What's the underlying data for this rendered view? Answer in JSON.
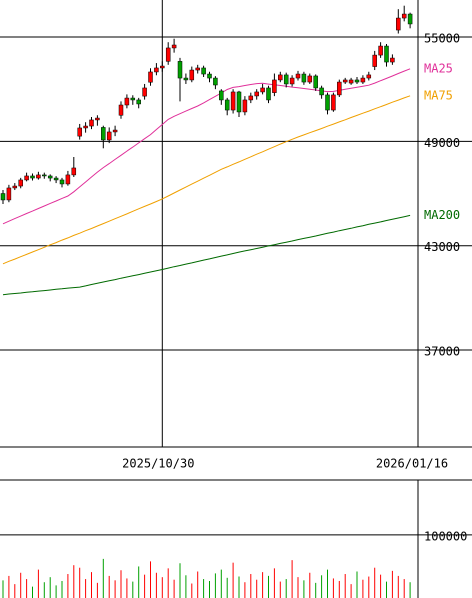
{
  "chart_data": {
    "type": "candlestick",
    "categories": [
      null,
      null,
      null,
      null,
      null,
      null,
      null,
      null,
      null,
      null,
      null,
      null,
      null,
      null,
      null,
      null,
      null,
      null,
      null,
      null,
      null,
      null,
      null,
      null,
      null,
      null,
      null,
      "2025/10/30",
      null,
      null,
      null,
      null,
      null,
      null,
      null,
      null,
      null,
      null,
      null,
      null,
      null,
      null,
      null,
      null,
      null,
      null,
      null,
      null,
      null,
      null,
      null,
      null,
      null,
      null,
      null,
      null,
      null,
      null,
      null,
      null,
      null,
      null,
      null,
      null,
      null,
      null,
      null,
      null,
      null,
      "2026/01/16"
    ],
    "open": [
      46000,
      45630,
      46320,
      46430,
      46780,
      47010,
      46890,
      47070,
      47010,
      46890,
      46780,
      46550,
      47070,
      49300,
      49770,
      49880,
      50230,
      49800,
      49080,
      49540,
      50500,
      51090,
      51490,
      51380,
      51600,
      52400,
      52990,
      53220,
      53600,
      54370,
      53600,
      52640,
      52530,
      53100,
      53220,
      52870,
      52640,
      51900,
      51380,
      50800,
      51840,
      50690,
      51380,
      51610,
      51840,
      52070,
      51800,
      52530,
      52820,
      52300,
      52640,
      52870,
      52410,
      52760,
      52070,
      51670,
      50800,
      51670,
      52410,
      52350,
      52530,
      52410,
      52640,
      53300,
      53960,
      54480,
      53560,
      55400,
      56090,
      56320
    ],
    "high": [
      46200,
      46500,
      46600,
      46900,
      47200,
      47150,
      47250,
      47200,
      47100,
      47000,
      46900,
      47300,
      48100,
      50000,
      50100,
      50400,
      50500,
      49900,
      49800,
      49900,
      51300,
      51700,
      51650,
      51500,
      52300,
      53200,
      53500,
      53600,
      54700,
      54900,
      53800,
      52900,
      53300,
      53400,
      53350,
      53000,
      52750,
      52000,
      51500,
      52000,
      51900,
      51600,
      51800,
      52000,
      52300,
      52200,
      52900,
      53000,
      52950,
      52800,
      53050,
      53000,
      52900,
      52850,
      52200,
      51800,
      51800,
      52550,
      52650,
      52650,
      52700,
      52800,
      53000,
      54200,
      54700,
      54600,
      54000,
      56600,
      56800,
      56400
    ],
    "low": [
      45400,
      45500,
      46200,
      46300,
      46700,
      46750,
      46800,
      46850,
      46700,
      46600,
      46350,
      46450,
      46950,
      49100,
      49500,
      49700,
      49900,
      48600,
      48900,
      49300,
      50300,
      50900,
      51100,
      50900,
      51400,
      52200,
      52800,
      53000,
      53400,
      54100,
      51300,
      52300,
      52400,
      52900,
      52700,
      52400,
      52000,
      51100,
      50500,
      50600,
      50400,
      50500,
      51200,
      51400,
      51700,
      51200,
      51600,
      52400,
      52100,
      52150,
      52500,
      52250,
      52300,
      51900,
      51450,
      50550,
      50700,
      51550,
      52300,
      52250,
      52300,
      52300,
      52500,
      53100,
      53800,
      53300,
      53400,
      55200,
      55900,
      55500
    ],
    "close": [
      45630,
      46320,
      46430,
      46780,
      47010,
      46890,
      47070,
      47010,
      46890,
      46780,
      46550,
      47070,
      47470,
      49770,
      49880,
      50230,
      50340,
      49080,
      49540,
      49650,
      51090,
      51490,
      51380,
      51150,
      52070,
      52990,
      53220,
      53330,
      54370,
      54540,
      52640,
      52530,
      53100,
      53220,
      52870,
      52640,
      52240,
      51380,
      50800,
      51840,
      50690,
      51380,
      51610,
      51840,
      52070,
      51380,
      52530,
      52820,
      52300,
      52640,
      52870,
      52410,
      52760,
      52070,
      51670,
      50800,
      51670,
      52410,
      52530,
      52530,
      52410,
      52640,
      52820,
      53960,
      54480,
      53560,
      53790,
      56090,
      56320,
      55750
    ],
    "up_color": "#ff0000",
    "down_color": "#00a000",
    "ylim": [
      31425,
      57127.5
    ],
    "yticks": [
      55000,
      49000,
      43000,
      37000
    ],
    "grid": true,
    "series": [
      {
        "name": "MA25",
        "color": "#e0309a",
        "values": [
          44260,
          44410,
          44560,
          44700,
          44850,
          44990,
          45140,
          45280,
          45430,
          45570,
          45720,
          45860,
          46100,
          46380,
          46660,
          46950,
          47230,
          47490,
          47720,
          47960,
          48200,
          48440,
          48670,
          48910,
          49150,
          49390,
          49680,
          49970,
          50260,
          50440,
          50590,
          50740,
          50890,
          51030,
          51210,
          51400,
          51590,
          51780,
          51980,
          52100,
          52150,
          52210,
          52270,
          52320,
          52340,
          52290,
          52250,
          52210,
          52170,
          52120,
          52080,
          52040,
          51990,
          51950,
          51900,
          51860,
          51870,
          51930,
          51990,
          52050,
          52110,
          52170,
          52230,
          52350,
          52490,
          52620,
          52760,
          52900,
          53040,
          53170
        ]
      },
      {
        "name": "MA75",
        "color": "#f0a000",
        "values": [
          41960,
          42100,
          42230,
          42370,
          42500,
          42640,
          42770,
          42910,
          43050,
          43180,
          43320,
          43450,
          43590,
          43720,
          43860,
          43990,
          44130,
          44270,
          44410,
          44550,
          44690,
          44830,
          44980,
          45120,
          45260,
          45400,
          45540,
          45690,
          45860,
          46030,
          46200,
          46370,
          46540,
          46710,
          46880,
          47050,
          47220,
          47390,
          47530,
          47680,
          47820,
          47970,
          48110,
          48260,
          48400,
          48550,
          48690,
          48840,
          48980,
          49120,
          49250,
          49370,
          49500,
          49620,
          49740,
          49870,
          49990,
          50120,
          50240,
          50370,
          50490,
          50620,
          50740,
          50870,
          50990,
          51120,
          51250,
          51370,
          51500,
          51620
        ]
      },
      {
        "name": "MA200",
        "color": "#006a00",
        "values": [
          40180,
          40220,
          40250,
          40280,
          40320,
          40350,
          40390,
          40420,
          40450,
          40490,
          40520,
          40560,
          40590,
          40620,
          40690,
          40770,
          40840,
          40910,
          40980,
          41050,
          41130,
          41200,
          41270,
          41340,
          41410,
          41490,
          41560,
          41630,
          41710,
          41790,
          41860,
          41940,
          42010,
          42090,
          42170,
          42240,
          42320,
          42400,
          42470,
          42550,
          42630,
          42700,
          42770,
          42840,
          42910,
          42990,
          43060,
          43130,
          43200,
          43270,
          43350,
          43420,
          43490,
          43560,
          43640,
          43710,
          43780,
          43860,
          43930,
          44000,
          44080,
          44150,
          44230,
          44300,
          44370,
          44450,
          44520,
          44590,
          44670,
          44740
        ]
      }
    ],
    "volume": {
      "values": [
        28000,
        35000,
        22000,
        40000,
        30000,
        18000,
        45000,
        25000,
        33000,
        20000,
        27000,
        38000,
        52000,
        48000,
        30000,
        41000,
        24000,
        62000,
        35000,
        28000,
        44000,
        31000,
        26000,
        50000,
        37000,
        58000,
        40000,
        33000,
        47000,
        29000,
        55000,
        36000,
        23000,
        42000,
        30000,
        27000,
        39000,
        45000,
        32000,
        56000,
        34000,
        25000,
        38000,
        29000,
        41000,
        35000,
        47000,
        26000,
        30000,
        60000,
        33000,
        28000,
        40000,
        24000,
        36000,
        45000,
        31000,
        27000,
        38000,
        22000,
        42000,
        29000,
        34000,
        48000,
        37000,
        26000,
        43000,
        35000,
        30000,
        25000
      ],
      "ylim": [
        0,
        187000
      ],
      "yticks": [
        100000
      ]
    }
  }
}
